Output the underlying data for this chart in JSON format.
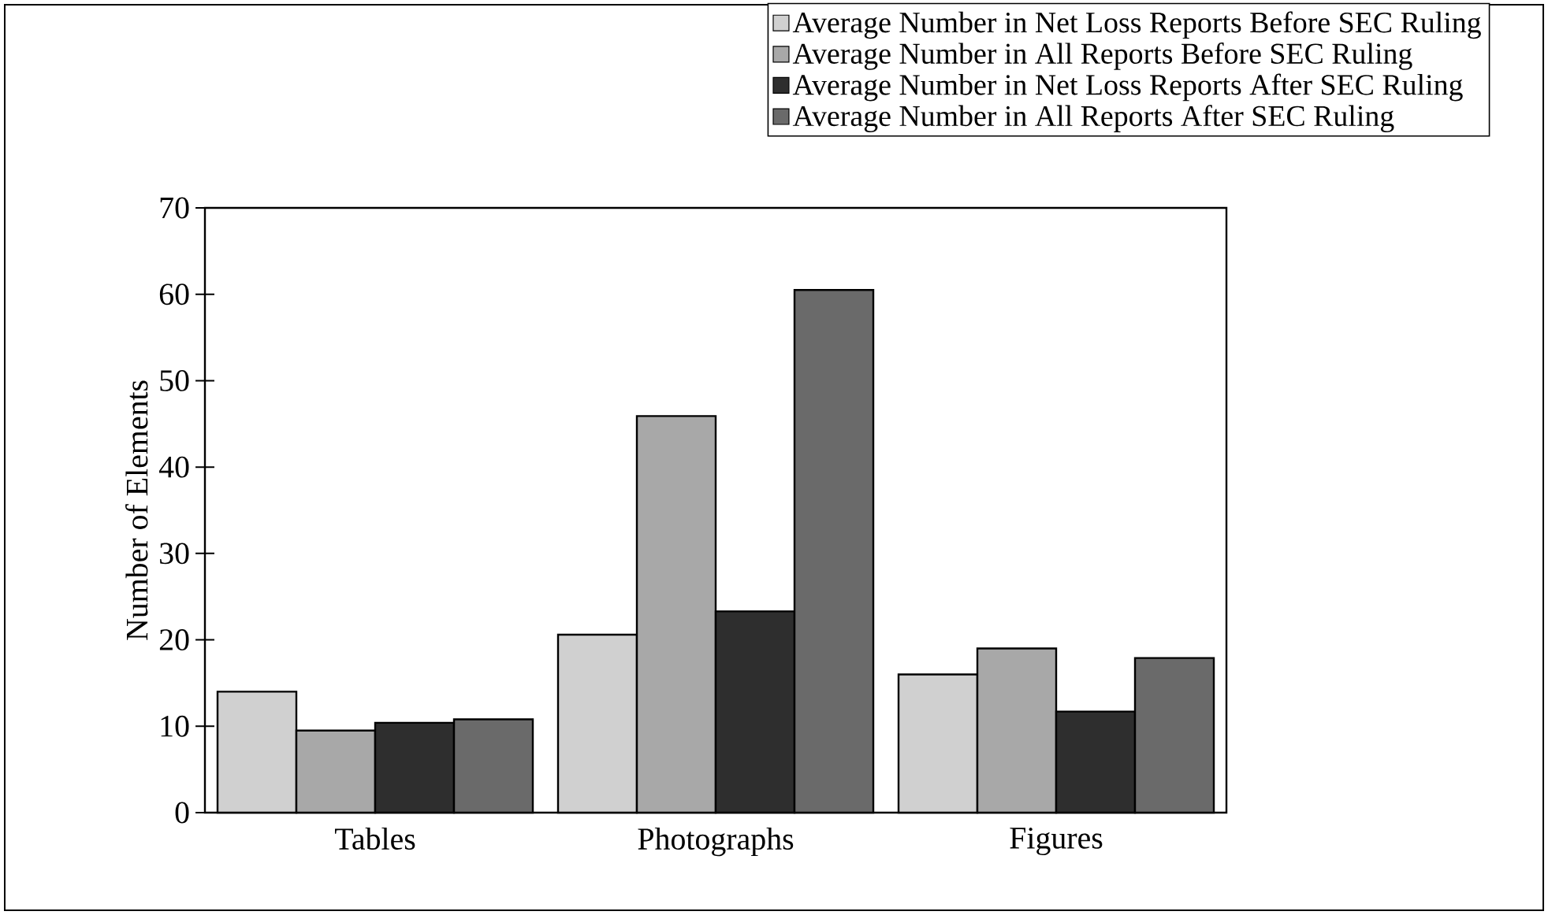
{
  "chart_data": {
    "type": "bar",
    "ylabel": "Number of Elements",
    "categories": [
      "Tables",
      "Photographs",
      "Figures"
    ],
    "series": [
      {
        "name": "Average Number in  Net Loss Reports Before SEC Ruling",
        "color": "#d0d0d0",
        "values": [
          14.0,
          20.6,
          16.0
        ]
      },
      {
        "name": "Average Number in All Reports Before SEC Ruling",
        "color": "#a8a8a8",
        "values": [
          9.5,
          45.9,
          19.0
        ]
      },
      {
        "name": "Average Number in  Net Loss Reports After SEC Ruling",
        "color": "#2e2e2e",
        "values": [
          10.4,
          23.3,
          11.7
        ]
      },
      {
        "name": "Average Number in All Reports After SEC Ruling",
        "color": "#6a6a6a",
        "values": [
          10.8,
          60.5,
          17.9
        ]
      }
    ],
    "ylim": [
      0,
      70
    ],
    "yticks": [
      0,
      10,
      20,
      30,
      40,
      50,
      60,
      70
    ],
    "grid": false,
    "legend": "top right"
  }
}
